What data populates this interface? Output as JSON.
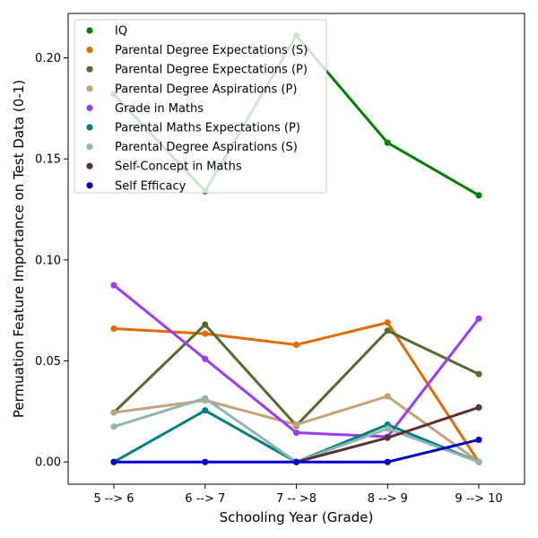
{
  "chart_data": {
    "type": "line",
    "xlabel": "Schooling Year (Grade)",
    "ylabel": "Permuation Feature Importance on Test Data (0-1)",
    "categories": [
      "5 --> 6",
      "6 --> 7",
      "7 -- >8",
      "8 --> 9",
      "9 --> 10"
    ],
    "ylim": [
      -0.011,
      0.222
    ],
    "yticks": [
      0.0,
      0.05,
      0.1,
      0.15,
      0.2
    ],
    "ytick_labels": [
      "0.00",
      "0.05",
      "0.10",
      "0.15",
      "0.20"
    ],
    "legend_position": "top-left",
    "grid": false,
    "series": [
      {
        "name": "IQ",
        "color": "#008000",
        "values": [
          0.182,
          0.134,
          0.211,
          0.158,
          0.132
        ]
      },
      {
        "name": "Parental Degree Expectations (S)",
        "color": "#e06c00",
        "values": [
          0.066,
          0.0635,
          0.058,
          0.069,
          0.0
        ]
      },
      {
        "name": "Parental Degree Expectations (P)",
        "color": "#556b2f",
        "values": [
          0.0245,
          0.068,
          0.018,
          0.065,
          0.0435
        ]
      },
      {
        "name": "Parental Degree Aspirations (P)",
        "color": "#c4a27a",
        "values": [
          0.0245,
          0.0305,
          0.0185,
          0.0325,
          0.0
        ]
      },
      {
        "name": "Grade in Maths",
        "color": "#9a3cf0",
        "values": [
          0.0875,
          0.051,
          0.0145,
          0.0125,
          0.071
        ]
      },
      {
        "name": "Parental Maths Expectations (P)",
        "color": "#008080",
        "values": [
          0.0,
          0.0255,
          0.0,
          0.0185,
          0.0
        ]
      },
      {
        "name": "Parental Degree Aspirations (S)",
        "color": "#8fb5b5",
        "values": [
          0.0175,
          0.0315,
          0.0,
          0.0165,
          0.0
        ]
      },
      {
        "name": "Self-Concept in Maths",
        "color": "#5c3030",
        "values": [
          null,
          null,
          0.0,
          0.012,
          0.027
        ]
      },
      {
        "name": "Self Efficacy",
        "color": "#0000cd",
        "values": [
          0.0,
          0.0,
          0.0,
          0.0,
          0.011
        ]
      }
    ]
  }
}
